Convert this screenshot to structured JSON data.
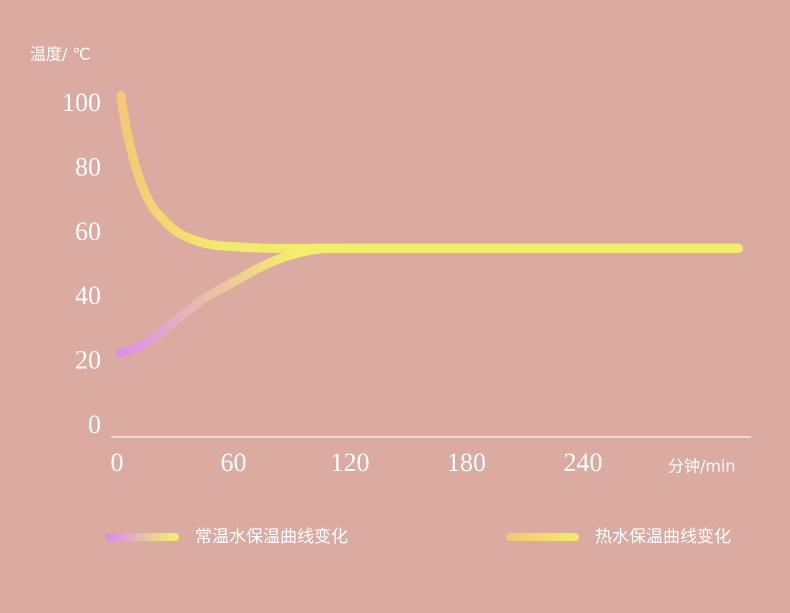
{
  "chart_data": {
    "type": "line",
    "ylabel": "温度/ ℃",
    "xlabel": "分钟/min",
    "xlim": [
      0,
      325
    ],
    "ylim": [
      0,
      100
    ],
    "xticks": [
      0,
      60,
      120,
      180,
      240
    ],
    "yticks": [
      0,
      20,
      40,
      60,
      80,
      100
    ],
    "series": [
      {
        "name": "常温水保温曲线变化",
        "color": [
          "#dd8fe8",
          "#f3ef6a"
        ],
        "x": [
          2,
          15,
          30,
          45,
          60,
          75,
          90,
          105,
          120,
          320
        ],
        "values": [
          23,
          26,
          33,
          40,
          45,
          50,
          53.5,
          55.3,
          55.5,
          55.5
        ]
      },
      {
        "name": "热水保温曲线变化",
        "color": [
          "#f5c877",
          "#f2ea6b"
        ],
        "x": [
          2,
          5,
          10,
          15,
          20,
          30,
          40,
          50,
          60,
          80,
          120,
          320
        ],
        "values": [
          103,
          92,
          80,
          72,
          67,
          61,
          58,
          56.5,
          56,
          55.5,
          55.5,
          55.5
        ]
      }
    ]
  }
}
